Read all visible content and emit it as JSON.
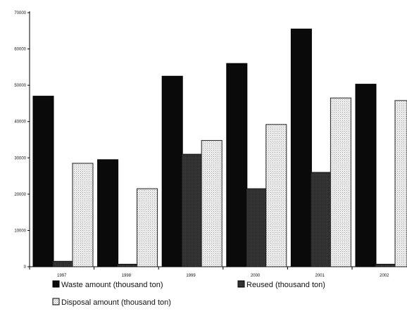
{
  "chart_data": {
    "type": "bar",
    "title": "",
    "xlabel": "",
    "ylabel": "",
    "categories": [
      "1997",
      "1998",
      "1999",
      "2000",
      "2001",
      "2002"
    ],
    "ylim": [
      0,
      70000
    ],
    "yticks": [
      "0",
      "10000",
      "20000",
      "30000",
      "40000",
      "50000",
      "60000",
      "70000"
    ],
    "series": [
      {
        "name": "Waste amount (thousand ton)",
        "values": [
          47000,
          29500,
          52500,
          56000,
          65500,
          50300
        ],
        "color": "#0a0a0a"
      },
      {
        "name": "Reused (thousand ton)",
        "values": [
          1500,
          700,
          31000,
          21500,
          26000,
          700
        ],
        "color": "#2e2e2e"
      },
      {
        "name": "Disposal amount (thousand ton)",
        "values": [
          28500,
          21500,
          34800,
          39200,
          46500,
          45800
        ],
        "color": "#f2f2f2"
      }
    ],
    "grid": false,
    "legend_position": "bottom"
  }
}
